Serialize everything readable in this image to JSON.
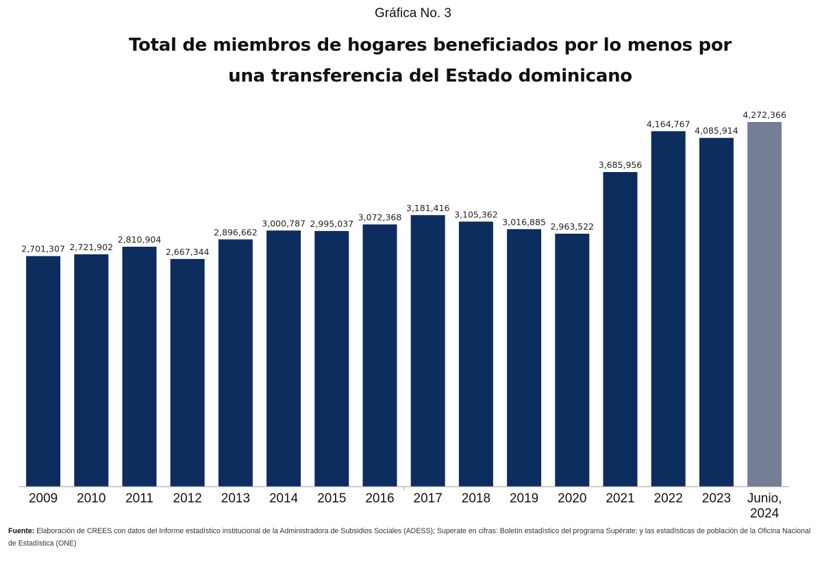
{
  "caption": "Gráfica No. 3",
  "title_line1": "Total de miembros de hogares beneficiados por lo menos por",
  "title_line2": "una  transferencia del Estado dominicano",
  "footnote": {
    "label": "Fuente:",
    "text": "Elaboración de CREES con datos del Informe estadístico institucional de la Administradora de Subsidios Sociales (ADESS);  Superate en cifras: Boletín estadístico del programa Supérate; y  las estadísticas de población de la Oficina Nacional de Estadística (ONE)"
  },
  "colors": {
    "bar": "#0c2d5e",
    "highlight": "#747e96",
    "axis": "#999999"
  },
  "chart_data": {
    "type": "bar",
    "title": "Total de miembros de hogares beneficiados por lo menos por una transferencia del Estado dominicano",
    "categories": [
      "2009",
      "2010",
      "2011",
      "2012",
      "2013",
      "2014",
      "2015",
      "2016",
      "2017",
      "2018",
      "2019",
      "2020",
      "2021",
      "2022",
      "2023",
      "Junio,\n2024"
    ],
    "values": [
      2701307,
      2721902,
      2810904,
      2667344,
      2896662,
      3000787,
      2995037,
      3072368,
      3181416,
      3105362,
      3016885,
      2963522,
      3685956,
      4164767,
      4085914,
      4272366
    ],
    "value_labels": [
      "2,701,307",
      "2,721,902",
      "2,810,904",
      "2,667,344",
      "2,896,662",
      "3,000,787",
      "2,995,037",
      "3,072,368",
      "3,181,416",
      "3,105,362",
      "3,016,885",
      "2,963,522",
      "3,685,956",
      "4,164,767",
      "4,085,914",
      "4,272,366"
    ],
    "highlight_index": 15,
    "xlabel": "",
    "ylabel": "",
    "ylim": [
      0,
      4272366
    ],
    "grid": false,
    "legend": "none"
  }
}
